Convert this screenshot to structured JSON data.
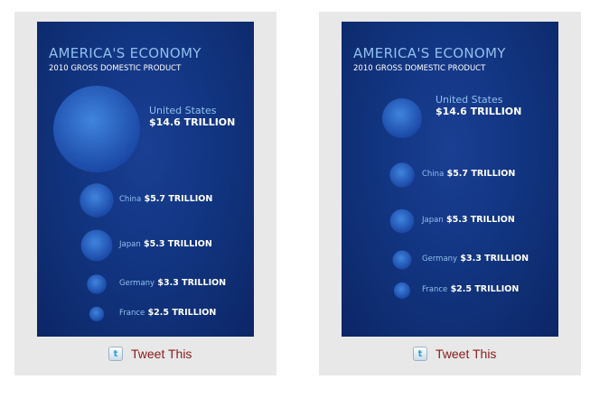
{
  "chart_data": [
    {
      "type": "bubble",
      "title": "AMERICA'S ECONOMY",
      "subtitle": "2010 GROSS DOMESTIC PRODUCT",
      "unit": "TRILLION",
      "categories": [
        "United States",
        "China",
        "Japan",
        "Germany",
        "France"
      ],
      "values": [
        14.6,
        5.7,
        5.3,
        3.3,
        2.5
      ],
      "value_labels": [
        "$14.6 TRILLION",
        "$5.7 TRILLION",
        "$5.3 TRILLION",
        "$3.3 TRILLION",
        "$2.5 TRILLION"
      ],
      "sizing": "diameter"
    },
    {
      "type": "bubble",
      "title": "AMERICA'S ECONOMY",
      "subtitle": "2010 GROSS DOMESTIC PRODUCT",
      "unit": "TRILLION",
      "categories": [
        "United States",
        "China",
        "Japan",
        "Germany",
        "France"
      ],
      "values": [
        14.6,
        5.7,
        5.3,
        3.3,
        2.5
      ],
      "value_labels": [
        "$14.6 TRILLION",
        "$5.7 TRILLION",
        "$5.3 TRILLION",
        "$3.3 TRILLION",
        "$2.5 TRILLION"
      ],
      "sizing": "area"
    }
  ],
  "share": {
    "label": "Tweet This",
    "icon": "twitter-icon",
    "icon_glyph": "t"
  },
  "colors": {
    "background_dark": "#0c2666",
    "bubble_center": "#3f84de",
    "bubble_edge": "#1a47a5",
    "title": "#8fc0ee",
    "tweet_text": "#8b1a1a"
  }
}
